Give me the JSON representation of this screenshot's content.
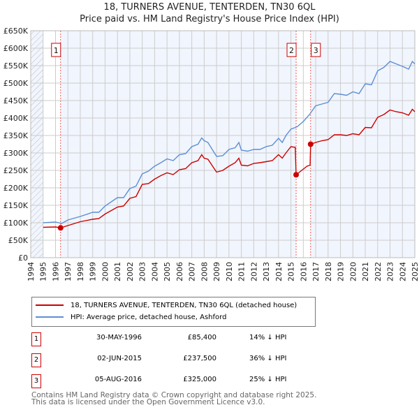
{
  "header": {
    "title": "18, TURNERS AVENUE, TENTERDEN, TN30 6QL",
    "subtitle": "Price paid vs. HM Land Registry's House Price Index (HPI)"
  },
  "chart_data": {
    "type": "line",
    "title": "18, TURNERS AVENUE, TENTERDEN, TN30 6QL",
    "subtitle": "Price paid vs. HM Land Registry's House Price Index (HPI)",
    "xlim": [
      1994,
      2025
    ],
    "ylim": [
      0,
      650000
    ],
    "yticks": [
      "£0",
      "£50K",
      "£100K",
      "£150K",
      "£200K",
      "£250K",
      "£300K",
      "£350K",
      "£400K",
      "£450K",
      "£500K",
      "£550K",
      "£600K",
      "£650K"
    ],
    "xticks": [
      "1994",
      "1995",
      "1996",
      "1997",
      "1998",
      "1999",
      "2000",
      "2001",
      "2002",
      "2003",
      "2004",
      "2005",
      "2006",
      "2007",
      "2008",
      "2009",
      "2010",
      "2011",
      "2012",
      "2013",
      "2014",
      "2015",
      "2016",
      "2017",
      "2018",
      "2019",
      "2020",
      "2021",
      "2022",
      "2023",
      "2024",
      "2025"
    ],
    "series": [
      {
        "name": "18, TURNERS AVENUE, TENTERDEN, TN30 6QL (detached house)",
        "color": "#cc0000",
        "points": [
          [
            1995,
            87
          ],
          [
            1996,
            88
          ],
          [
            1996.41,
            85.4
          ],
          [
            1997,
            92
          ],
          [
            1998,
            103
          ],
          [
            1999,
            110
          ],
          [
            1999.5,
            112
          ],
          [
            2000,
            125
          ],
          [
            2001,
            145
          ],
          [
            2001.5,
            148
          ],
          [
            2002,
            170
          ],
          [
            2002.5,
            175
          ],
          [
            2003,
            210
          ],
          [
            2003.5,
            212
          ],
          [
            2004,
            225
          ],
          [
            2004.5,
            235
          ],
          [
            2005,
            243
          ],
          [
            2005.5,
            238
          ],
          [
            2006,
            252
          ],
          [
            2006.5,
            255
          ],
          [
            2007,
            272
          ],
          [
            2007.5,
            278
          ],
          [
            2007.8,
            295
          ],
          [
            2008,
            285
          ],
          [
            2008.3,
            282
          ],
          [
            2009,
            245
          ],
          [
            2009.5,
            250
          ],
          [
            2010,
            262
          ],
          [
            2010.5,
            272
          ],
          [
            2010.8,
            285
          ],
          [
            2011,
            265
          ],
          [
            2011.5,
            263
          ],
          [
            2012,
            270
          ],
          [
            2012.5,
            272
          ],
          [
            2013,
            275
          ],
          [
            2013.5,
            278
          ],
          [
            2014,
            295
          ],
          [
            2014.3,
            285
          ],
          [
            2014.6,
            300
          ],
          [
            2015,
            318
          ],
          [
            2015.35,
            316
          ],
          [
            2015.42,
            237.5
          ],
          [
            2015.8,
            248
          ],
          [
            2016.3,
            262
          ],
          [
            2016.55,
            265
          ],
          [
            2016.59,
            325
          ],
          [
            2017,
            330
          ],
          [
            2017.5,
            335
          ],
          [
            2018,
            338
          ],
          [
            2018.5,
            352
          ],
          [
            2019,
            352
          ],
          [
            2019.5,
            350
          ],
          [
            2020,
            355
          ],
          [
            2020.5,
            352
          ],
          [
            2021,
            373
          ],
          [
            2021.5,
            372
          ],
          [
            2022,
            402
          ],
          [
            2022.5,
            410
          ],
          [
            2023,
            423
          ],
          [
            2023.5,
            418
          ],
          [
            2024,
            415
          ],
          [
            2024.5,
            408
          ],
          [
            2024.8,
            425
          ],
          [
            2025,
            418
          ]
        ]
      },
      {
        "name": "HPI: Average price, detached house, Ashford",
        "color": "#5b8fd4",
        "points": [
          [
            1995,
            100
          ],
          [
            1996,
            102
          ],
          [
            1996.5,
            98
          ],
          [
            1997,
            108
          ],
          [
            1998,
            118
          ],
          [
            1999,
            130
          ],
          [
            1999.5,
            130
          ],
          [
            2000,
            148
          ],
          [
            2001,
            172
          ],
          [
            2001.5,
            172
          ],
          [
            2002,
            198
          ],
          [
            2002.5,
            205
          ],
          [
            2003,
            240
          ],
          [
            2003.5,
            248
          ],
          [
            2004,
            262
          ],
          [
            2004.5,
            272
          ],
          [
            2005,
            283
          ],
          [
            2005.5,
            278
          ],
          [
            2006,
            295
          ],
          [
            2006.5,
            298
          ],
          [
            2007,
            318
          ],
          [
            2007.5,
            325
          ],
          [
            2007.8,
            343
          ],
          [
            2008,
            335
          ],
          [
            2008.3,
            330
          ],
          [
            2009,
            290
          ],
          [
            2009.5,
            292
          ],
          [
            2010,
            310
          ],
          [
            2010.5,
            315
          ],
          [
            2010.8,
            330
          ],
          [
            2011,
            308
          ],
          [
            2011.5,
            305
          ],
          [
            2012,
            310
          ],
          [
            2012.5,
            310
          ],
          [
            2013,
            318
          ],
          [
            2013.5,
            322
          ],
          [
            2014,
            342
          ],
          [
            2014.3,
            330
          ],
          [
            2014.6,
            350
          ],
          [
            2015,
            368
          ],
          [
            2015.5,
            375
          ],
          [
            2016,
            390
          ],
          [
            2016.5,
            410
          ],
          [
            2017,
            435
          ],
          [
            2017.5,
            440
          ],
          [
            2018,
            445
          ],
          [
            2018.5,
            470
          ],
          [
            2019,
            468
          ],
          [
            2019.5,
            465
          ],
          [
            2020,
            475
          ],
          [
            2020.5,
            470
          ],
          [
            2021,
            498
          ],
          [
            2021.5,
            495
          ],
          [
            2022,
            535
          ],
          [
            2022.5,
            545
          ],
          [
            2023,
            562
          ],
          [
            2023.5,
            555
          ],
          [
            2024,
            548
          ],
          [
            2024.5,
            540
          ],
          [
            2024.8,
            562
          ],
          [
            2025,
            555
          ]
        ]
      }
    ],
    "sales": [
      {
        "label": "1",
        "x": 1996.41,
        "y": 85.4
      },
      {
        "label": "2",
        "x": 2015.42,
        "y": 237.5
      },
      {
        "label": "3",
        "x": 2016.59,
        "y": 325
      }
    ]
  },
  "legend": {
    "property": "18, TURNERS AVENUE, TENTERDEN, TN30 6QL (detached house)",
    "hpi": "HPI: Average price, detached house, Ashford"
  },
  "transactions": [
    {
      "num": "1",
      "date": "30-MAY-1996",
      "price": "£85,400",
      "hpi": "14% ↓ HPI"
    },
    {
      "num": "2",
      "date": "02-JUN-2015",
      "price": "£237,500",
      "hpi": "36% ↓ HPI"
    },
    {
      "num": "3",
      "date": "05-AUG-2016",
      "price": "£325,000",
      "hpi": "25% ↓ HPI"
    }
  ],
  "footer": {
    "line1": "Contains HM Land Registry data © Crown copyright and database right 2025.",
    "line2": "This data is licensed under the Open Government Licence v3.0."
  }
}
